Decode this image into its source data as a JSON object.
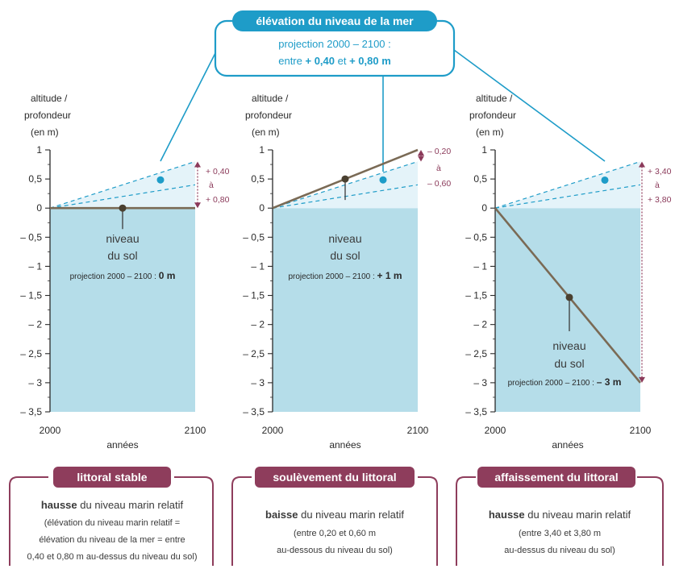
{
  "banner": {
    "title": "élévation du niveau de la mer",
    "line1": "projection 2000 – 2100 :",
    "line2_pre": "entre ",
    "line2_v1": "+ 0,40",
    "line2_mid": " et ",
    "line2_v2": "+ 0,80 m"
  },
  "axis": {
    "ylabel_1": "altitude /",
    "ylabel_2": "profondeur",
    "ylabel_3": "(en m)",
    "xlabel": "années",
    "x_start": "2000",
    "x_end": "2100",
    "y_ticks": [
      "1",
      "0,5",
      "0",
      "– 0,5",
      "– 1",
      "– 1,5",
      "– 2",
      "– 2,5",
      "– 3",
      "– 3,5"
    ]
  },
  "panels": [
    {
      "ground_1": "niveau",
      "ground_2": "du sol",
      "proj_prefix": "projection 2000 – 2100 : ",
      "proj_value": "0 m",
      "ann_1": "+ 0,40",
      "ann_2": "à",
      "ann_3": "+ 0,80",
      "card_title": "littoral stable",
      "card_bold": "hausse",
      "card_rest": " du niveau marin relatif",
      "card_lines": [
        "(élévation du niveau marin relatif =",
        "élévation du niveau de la mer = entre",
        "0,40 et 0,80 m au-dessus du niveau du sol)"
      ]
    },
    {
      "ground_1": "niveau",
      "ground_2": "du sol",
      "proj_prefix": "projection 2000 – 2100 : ",
      "proj_value": "+ 1 m",
      "ann_1": "– 0,20",
      "ann_2": "à",
      "ann_3": "– 0,60",
      "card_title": "soulèvement du littoral",
      "card_bold": "baisse",
      "card_rest": " du niveau marin relatif",
      "card_lines": [
        "(entre 0,20 et 0,60 m",
        "au-dessous du niveau du sol)"
      ]
    },
    {
      "ground_1": "niveau",
      "ground_2": "du sol",
      "proj_prefix": "projection 2000 – 2100 : ",
      "proj_value": "– 3 m",
      "ann_1": "+ 3,40",
      "ann_2": "à",
      "ann_3": "+ 3,80",
      "card_title": "affaissement du littoral",
      "card_bold": "hausse",
      "card_rest": " du niveau marin relatif",
      "card_lines": [
        "(entre 3,40 et 3,80 m",
        "au-dessus du niveau du sol)"
      ]
    }
  ],
  "colors": {
    "sea": "#b5dde9",
    "sea_light": "#e4f3f9",
    "cyan": "#1e9cc8",
    "ground_line": "#7a6a55",
    "maroon": "#8b3a5a",
    "maroon_fill": "#8e3d5c",
    "card_border": "#8e3d5c"
  }
}
